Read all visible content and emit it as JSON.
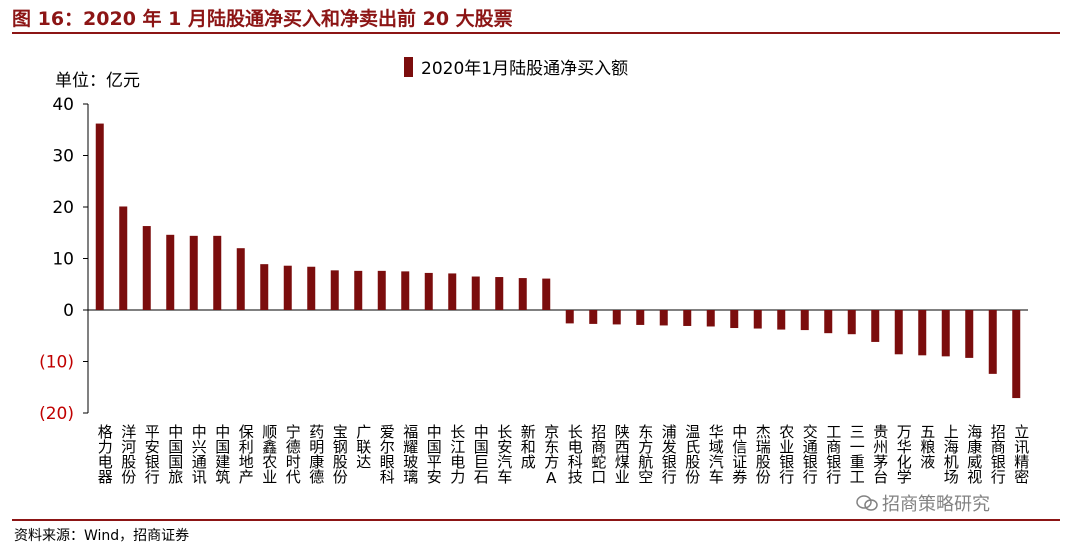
{
  "header": {
    "title": "图 16：2020 年 1 月陆股通净买入和净卖出前 20 大股票"
  },
  "unit_label": "单位：亿元",
  "source": "资料来源：Wind，招商证券",
  "watermark": "招商策略研究",
  "colors": {
    "bar": "#7b0d0d",
    "accent": "#8c1515",
    "negative_tick": "#c00000"
  },
  "chart_data": {
    "type": "bar",
    "categories": [
      "格力电器",
      "洋河股份",
      "平安银行",
      "中国国旅",
      "中兴通讯",
      "中国建筑",
      "保利地产",
      "顺鑫农业",
      "宁德时代",
      "药明康德",
      "宝钢股份",
      "广联达",
      "爱尔眼科",
      "福耀玻璃",
      "中国平安",
      "长江电力",
      "中国巨石",
      "长安汽车",
      "新和成",
      "京东方A",
      "长电科技",
      "招商蛇口",
      "陕西煤业",
      "东方航空",
      "浦发银行",
      "温氏股份",
      "华域汽车",
      "中信证券",
      "杰瑞股份",
      "农业银行",
      "交通银行",
      "工商银行",
      "三一重工",
      "贵州茅台",
      "万华化学",
      "五粮液",
      "上海机场",
      "海康威视",
      "招商银行",
      "立讯精密"
    ],
    "series": [
      {
        "name": "2020年1月陆股通净买入额",
        "values": [
          36.2,
          20.1,
          16.3,
          14.6,
          14.4,
          14.4,
          12.0,
          8.9,
          8.6,
          8.4,
          7.7,
          7.6,
          7.6,
          7.5,
          7.2,
          7.1,
          6.5,
          6.4,
          6.2,
          6.1,
          -2.6,
          -2.7,
          -2.8,
          -2.9,
          -3.0,
          -3.1,
          -3.2,
          -3.5,
          -3.6,
          -3.8,
          -3.9,
          -4.5,
          -4.7,
          -6.2,
          -8.6,
          -8.8,
          -9.0,
          -9.3,
          -12.4,
          -17.1
        ]
      }
    ],
    "yticks": [
      "40",
      "30",
      "20",
      "10",
      "0",
      "(10)",
      "(20)"
    ],
    "ylim": [
      -20,
      40
    ]
  }
}
